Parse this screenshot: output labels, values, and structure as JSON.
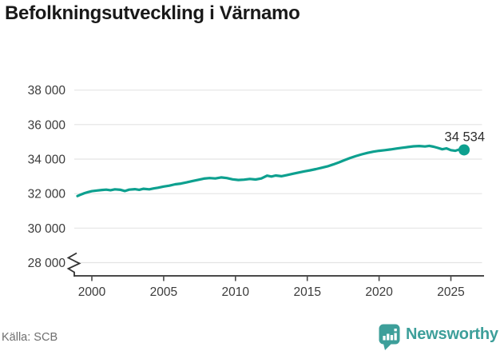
{
  "header": {
    "title": "Befolkningsutveckling i Värnamo"
  },
  "footer": {
    "source": "Källa: SCB",
    "brand": "Newsworthy",
    "logo_icon": "speech-bubble-bar-chart"
  },
  "colors": {
    "line": "#0da08f",
    "marker": "#0da08f",
    "brand": "#3d9f9a",
    "grid": "#e4e4e4",
    "axis_line": "#4a4a4a",
    "tick_text": "#3b3b3b",
    "title_text": "#191919",
    "source_text": "#6f6f6f",
    "end_label_text": "#2e2e2e",
    "break_glyph": "#333333"
  },
  "chart_data": {
    "type": "line",
    "title": "Befolkningsutveckling i Värnamo",
    "source": "SCB",
    "grid": "horizontal",
    "legend": "none",
    "y_axis_break": true,
    "xlim": [
      1998.8,
      2027.2
    ],
    "ylim": [
      28000,
      38000
    ],
    "x_ticks": [
      {
        "value": 2000,
        "label": "2000"
      },
      {
        "value": 2005,
        "label": "2005"
      },
      {
        "value": 2010,
        "label": "2010"
      },
      {
        "value": 2015,
        "label": "2015"
      },
      {
        "value": 2020,
        "label": "2020"
      },
      {
        "value": 2025,
        "label": "2025"
      }
    ],
    "y_ticks": [
      {
        "value": 28000,
        "label": "28 000"
      },
      {
        "value": 30000,
        "label": "30 000"
      },
      {
        "value": 32000,
        "label": "32 000"
      },
      {
        "value": 34000,
        "label": "34 000"
      },
      {
        "value": 36000,
        "label": "36 000"
      },
      {
        "value": 38000,
        "label": "38 000"
      }
    ],
    "end_label": "34 534",
    "end_value": 34534,
    "points": [
      [
        1999,
        31860
      ],
      [
        1999.25,
        31950
      ],
      [
        1999.5,
        32030
      ],
      [
        1999.75,
        32090
      ],
      [
        2000,
        32140
      ],
      [
        2000.35,
        32180
      ],
      [
        2000.7,
        32210
      ],
      [
        2001,
        32230
      ],
      [
        2001.3,
        32200
      ],
      [
        2001.6,
        32250
      ],
      [
        2002,
        32220
      ],
      [
        2002.3,
        32150
      ],
      [
        2002.6,
        32230
      ],
      [
        2003,
        32260
      ],
      [
        2003.3,
        32220
      ],
      [
        2003.6,
        32280
      ],
      [
        2004,
        32250
      ],
      [
        2004.3,
        32300
      ],
      [
        2004.6,
        32340
      ],
      [
        2005,
        32410
      ],
      [
        2005.4,
        32460
      ],
      [
        2005.8,
        32540
      ],
      [
        2006.2,
        32580
      ],
      [
        2006.6,
        32650
      ],
      [
        2007,
        32730
      ],
      [
        2007.4,
        32800
      ],
      [
        2007.8,
        32870
      ],
      [
        2008.2,
        32900
      ],
      [
        2008.6,
        32880
      ],
      [
        2009,
        32940
      ],
      [
        2009.4,
        32900
      ],
      [
        2009.8,
        32830
      ],
      [
        2010.2,
        32790
      ],
      [
        2010.6,
        32810
      ],
      [
        2011,
        32850
      ],
      [
        2011.4,
        32820
      ],
      [
        2011.8,
        32880
      ],
      [
        2012.2,
        33040
      ],
      [
        2012.5,
        32990
      ],
      [
        2012.8,
        33050
      ],
      [
        2013.2,
        33010
      ],
      [
        2013.6,
        33080
      ],
      [
        2014,
        33150
      ],
      [
        2014.4,
        33220
      ],
      [
        2014.8,
        33290
      ],
      [
        2015.2,
        33350
      ],
      [
        2015.6,
        33420
      ],
      [
        2016,
        33500
      ],
      [
        2016.4,
        33580
      ],
      [
        2016.8,
        33690
      ],
      [
        2017.2,
        33810
      ],
      [
        2017.6,
        33940
      ],
      [
        2018,
        34070
      ],
      [
        2018.4,
        34180
      ],
      [
        2018.8,
        34280
      ],
      [
        2019.2,
        34360
      ],
      [
        2019.6,
        34430
      ],
      [
        2020,
        34480
      ],
      [
        2020.4,
        34520
      ],
      [
        2020.8,
        34560
      ],
      [
        2021.2,
        34610
      ],
      [
        2021.6,
        34660
      ],
      [
        2022,
        34700
      ],
      [
        2022.4,
        34740
      ],
      [
        2022.8,
        34760
      ],
      [
        2023.2,
        34730
      ],
      [
        2023.5,
        34770
      ],
      [
        2023.8,
        34720
      ],
      [
        2024.1,
        34650
      ],
      [
        2024.4,
        34570
      ],
      [
        2024.7,
        34620
      ],
      [
        2025,
        34520
      ],
      [
        2025.3,
        34480
      ],
      [
        2025.6,
        34560
      ],
      [
        2025.92,
        34534
      ]
    ]
  }
}
